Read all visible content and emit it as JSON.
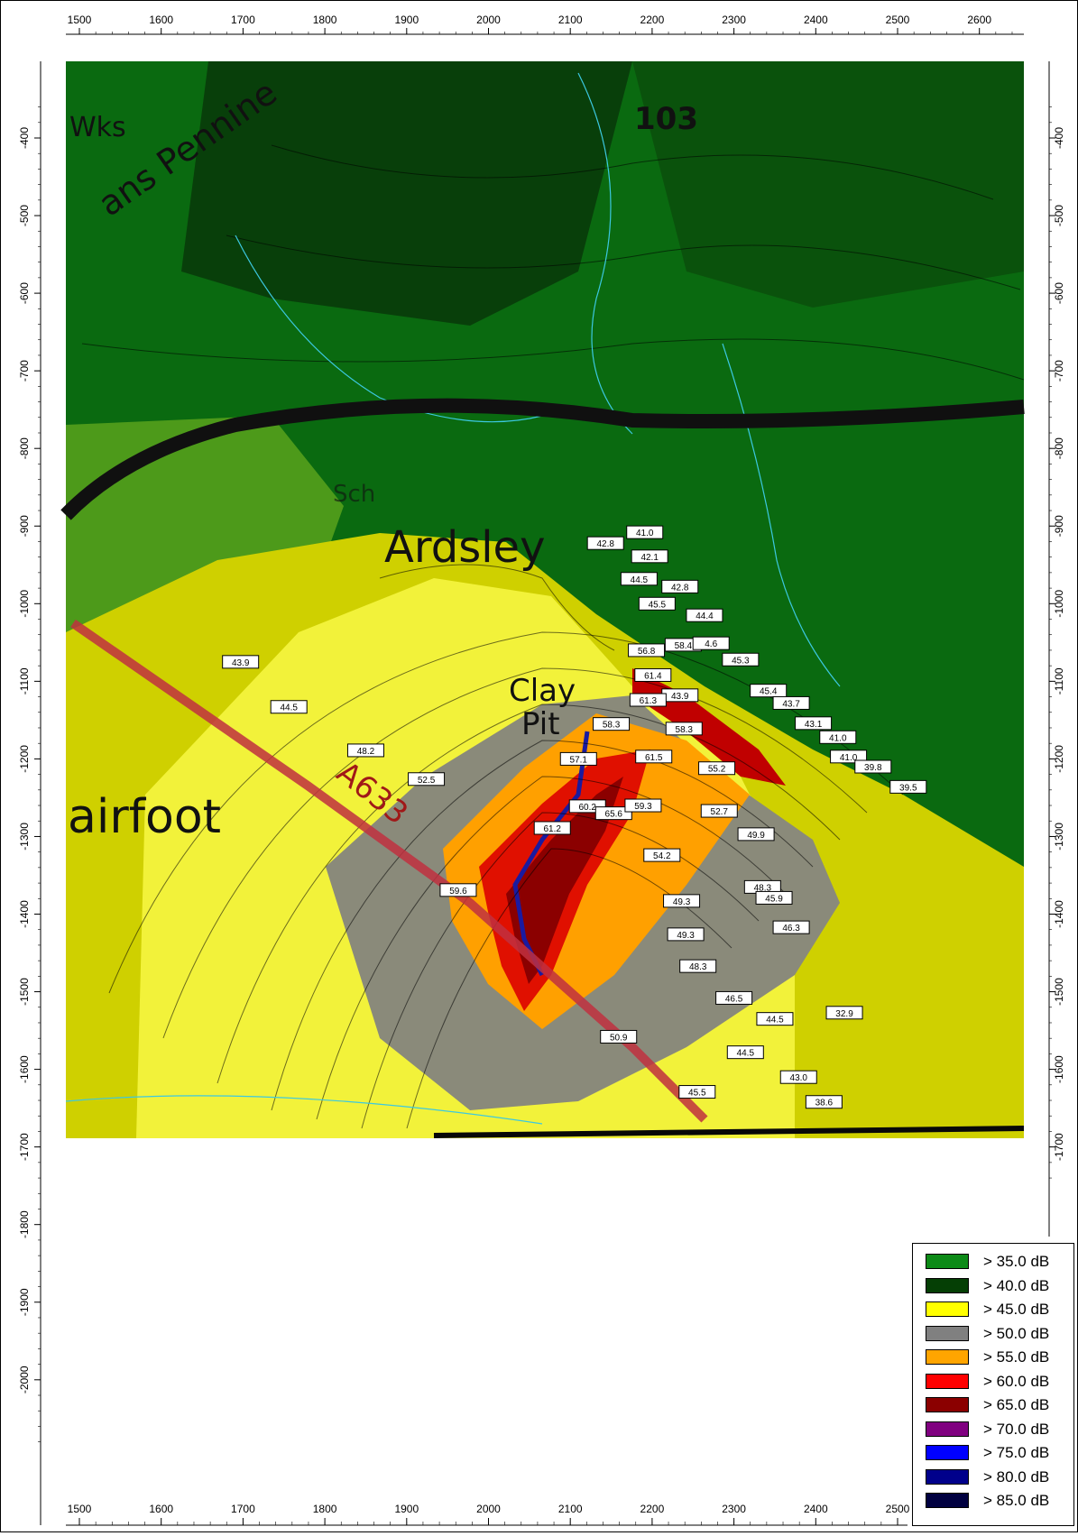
{
  "x_axis": {
    "top_ticks": [
      "1500",
      "1600",
      "1700",
      "1800",
      "1900",
      "2000",
      "2100",
      "2200",
      "2300",
      "2400",
      "2500",
      "2600"
    ],
    "bottom_ticks": [
      "1500",
      "1600",
      "1700",
      "1800",
      "1900",
      "2000",
      "2100",
      "2200",
      "2300",
      "2400",
      "2500"
    ]
  },
  "y_axis": {
    "ticks": [
      "-400",
      "-500",
      "-600",
      "-700",
      "-800",
      "-900",
      "-1000",
      "-1100",
      "-1200",
      "-1300",
      "-1400",
      "-1500",
      "-1600",
      "-1700",
      "-1800",
      "-1900",
      "-2000"
    ]
  },
  "map_labels": {
    "trans_pennine": "ans Pennine",
    "wks": "Wks",
    "road_number": "103",
    "ardsley": "Ardsley",
    "clay": "Clay",
    "pit": "Pit",
    "stairfoot": "airfoot",
    "road_a633": "A633",
    "sch": "Sch"
  },
  "receiver_points": [
    {
      "value": "41.0",
      "x": 2191,
      "y": -908
    },
    {
      "value": "42.8",
      "x": 2143,
      "y": -922
    },
    {
      "value": "42.1",
      "x": 2197,
      "y": -939
    },
    {
      "value": "44.5",
      "x": 2184,
      "y": -968
    },
    {
      "value": "42.8",
      "x": 2234,
      "y": -978
    },
    {
      "value": "45.5",
      "x": 2206,
      "y": -1000
    },
    {
      "value": "44.4",
      "x": 2264,
      "y": -1015
    },
    {
      "value": "56.8",
      "x": 2193,
      "y": -1060
    },
    {
      "value": "58.4",
      "x": 2238,
      "y": -1053
    },
    {
      "value": "4.6",
      "x": 2272,
      "y": -1051
    },
    {
      "value": "45.3",
      "x": 2308,
      "y": -1072
    },
    {
      "value": "61.4",
      "x": 2201,
      "y": -1092
    },
    {
      "value": "43.9",
      "x": 2234,
      "y": -1118
    },
    {
      "value": "61.3",
      "x": 2195,
      "y": -1124
    },
    {
      "value": "45.4",
      "x": 2342,
      "y": -1112
    },
    {
      "value": "43.7",
      "x": 2370,
      "y": -1128
    },
    {
      "value": "58.3",
      "x": 2150,
      "y": -1155
    },
    {
      "value": "58.3",
      "x": 2239,
      "y": -1161
    },
    {
      "value": "43.1",
      "x": 2397,
      "y": -1154
    },
    {
      "value": "41.0",
      "x": 2427,
      "y": -1172
    },
    {
      "value": "57.1",
      "x": 2110,
      "y": -1200
    },
    {
      "value": "61.5",
      "x": 2202,
      "y": -1197
    },
    {
      "value": "55.2",
      "x": 2279,
      "y": -1212
    },
    {
      "value": "41.0",
      "x": 2440,
      "y": -1197
    },
    {
      "value": "39.8",
      "x": 2470,
      "y": -1210
    },
    {
      "value": "39.5",
      "x": 2513,
      "y": -1236
    },
    {
      "value": "60.2",
      "x": 2121,
      "y": -1261
    },
    {
      "value": "65.6",
      "x": 2153,
      "y": -1270
    },
    {
      "value": "59.3",
      "x": 2189,
      "y": -1260
    },
    {
      "value": "52.7",
      "x": 2282,
      "y": -1267
    },
    {
      "value": "61.2",
      "x": 2078,
      "y": -1289
    },
    {
      "value": "49.9",
      "x": 2327,
      "y": -1297
    },
    {
      "value": "54.2",
      "x": 2212,
      "y": -1324
    },
    {
      "value": "48.3",
      "x": 2335,
      "y": -1365
    },
    {
      "value": "45.9",
      "x": 2349,
      "y": -1379
    },
    {
      "value": "59.6",
      "x": 1963,
      "y": -1369
    },
    {
      "value": "49.3",
      "x": 2236,
      "y": -1383
    },
    {
      "value": "46.3",
      "x": 2370,
      "y": -1417
    },
    {
      "value": "49.3",
      "x": 2241,
      "y": -1426
    },
    {
      "value": "48.3",
      "x": 2256,
      "y": -1467
    },
    {
      "value": "46.5",
      "x": 2300,
      "y": -1508
    },
    {
      "value": "44.5",
      "x": 2350,
      "y": -1535
    },
    {
      "value": "32.9",
      "x": 2435,
      "y": -1527
    },
    {
      "value": "50.9",
      "x": 2159,
      "y": -1558
    },
    {
      "value": "44.5",
      "x": 2314,
      "y": -1578
    },
    {
      "value": "43.0",
      "x": 2379,
      "y": -1610
    },
    {
      "value": "45.5",
      "x": 2255,
      "y": -1629
    },
    {
      "value": "38.6",
      "x": 2410,
      "y": -1642
    },
    {
      "value": "43.9",
      "x": 1697,
      "y": -1075
    },
    {
      "value": "44.5",
      "x": 1756,
      "y": -1133
    },
    {
      "value": "48.2",
      "x": 1850,
      "y": -1189
    },
    {
      "value": "52.5",
      "x": 1924,
      "y": -1226
    }
  ],
  "legend": {
    "items": [
      {
        "label": "> 35.0 dB",
        "color": "#0c8a17"
      },
      {
        "label": "> 40.0 dB",
        "color": "#053f05"
      },
      {
        "label": "> 45.0 dB",
        "color": "#ffff00"
      },
      {
        "label": "> 50.0 dB",
        "color": "#808080"
      },
      {
        "label": "> 55.0 dB",
        "color": "#ffa500"
      },
      {
        "label": "> 60.0 dB",
        "color": "#ff0000"
      },
      {
        "label": "> 65.0 dB",
        "color": "#8b0000"
      },
      {
        "label": "> 70.0 dB",
        "color": "#800080"
      },
      {
        "label": "> 75.0 dB",
        "color": "#0000ff"
      },
      {
        "label": "> 80.0 dB",
        "color": "#00008b"
      },
      {
        "label": "> 85.0 dB",
        "color": "#000040"
      }
    ]
  }
}
